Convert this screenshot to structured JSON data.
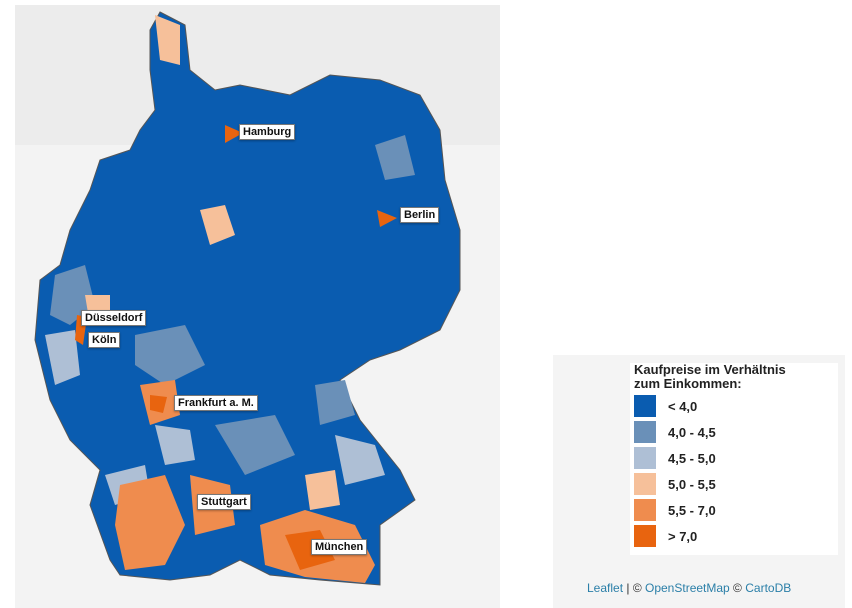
{
  "map": {
    "cities": [
      "Hamburg",
      "Berlin",
      "Düsseldorf",
      "Köln",
      "Frankfurt a. M.",
      "Stuttgart",
      "München"
    ]
  },
  "legend": {
    "title_line1": "Kaufpreise im Verhältnis",
    "title_line2": "zum Einkommen:",
    "classes": [
      {
        "label": "< 4,0",
        "color": "#0a5cb0"
      },
      {
        "label": "4,0 - 4,5",
        "color": "#6a90b8"
      },
      {
        "label": "4,5 - 5,0",
        "color": "#aebfd5"
      },
      {
        "label": "5,0 - 5,5",
        "color": "#f6c09a"
      },
      {
        "label": "5,5 - 7,0",
        "color": "#ef8c4e"
      },
      {
        "label": "> 7,0",
        "color": "#e8640f"
      }
    ]
  },
  "attribution": {
    "leaflet": "Leaflet",
    "sep": " | © ",
    "osm": "OpenStreetMap",
    "sep2": " © ",
    "carto": "CartoDB"
  }
}
